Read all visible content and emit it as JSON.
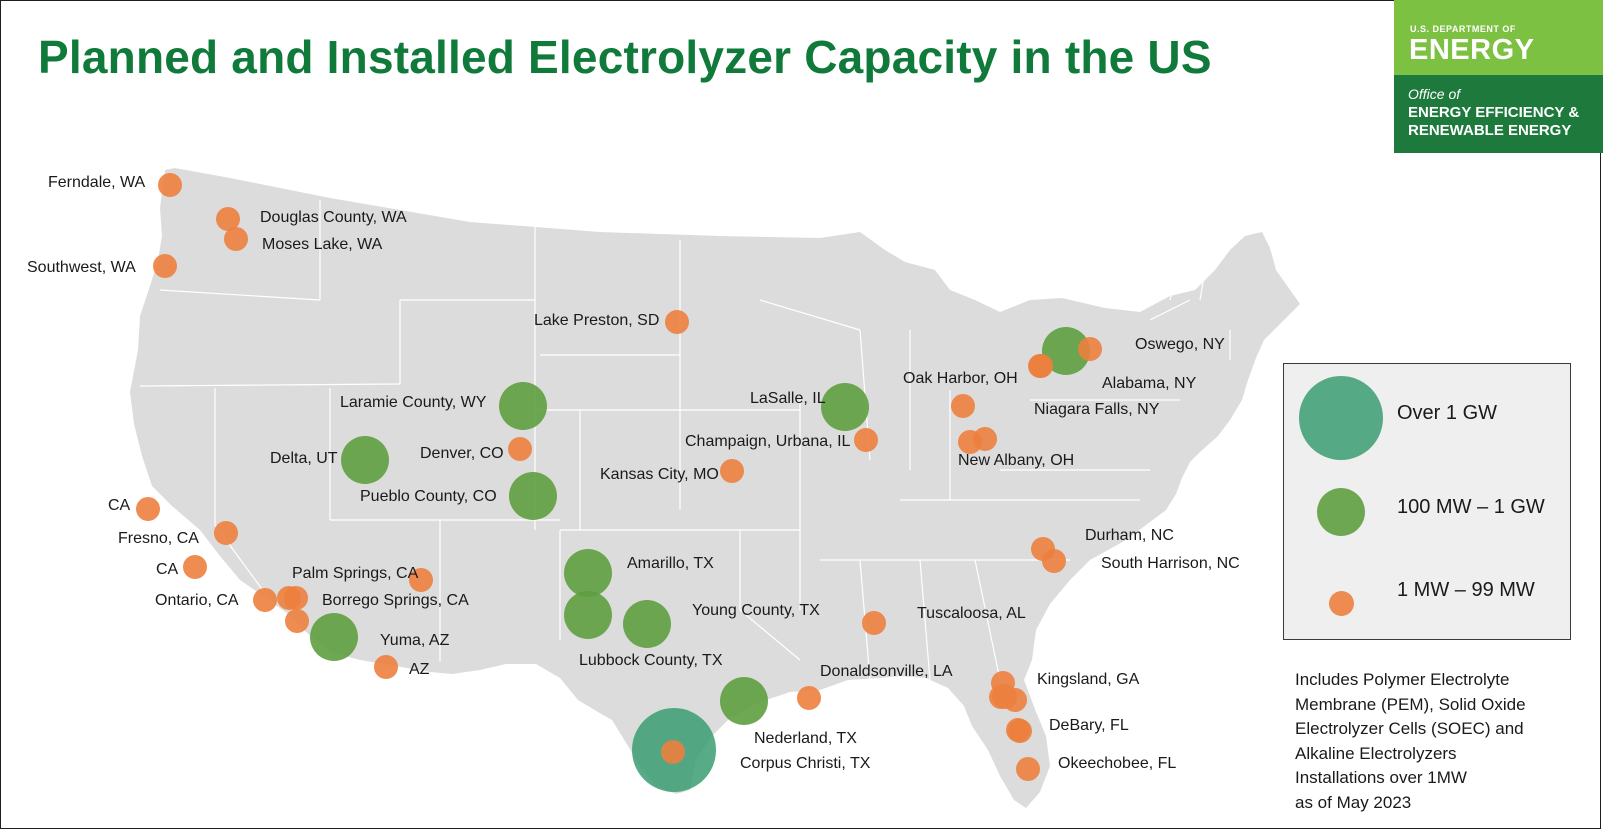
{
  "title": "Planned and Installed Electrolyzer Capacity in the US",
  "logo": {
    "dept": "U.S. DEPARTMENT OF",
    "energy": "ENERGY",
    "office": "Office of",
    "eere_line1": "ENERGY EFFICIENCY &",
    "eere_line2": "RENEWABLE ENERGY",
    "top_color": "#7dc142",
    "bottom_color": "#1e7a3c"
  },
  "colors": {
    "land": "#dcdcdc",
    "state_border": "#ffffff",
    "over_1gw": "#3a9e72",
    "mid": "#5e9e3f",
    "small": "#ec7f3e"
  },
  "legend": {
    "items": [
      {
        "label": "Over 1 GW",
        "category": "over_1gw"
      },
      {
        "label": "100 MW – 1 GW",
        "category": "mid"
      },
      {
        "label": "1 MW – 99 MW",
        "category": "small"
      }
    ]
  },
  "note_lines": [
    "Includes Polymer Electrolyte",
    "Membrane (PEM), Solid Oxide",
    "Electrolyzer Cells (SOEC) and",
    "Alkaline Electrolyzers",
    "Installations over 1MW",
    "as of May 2023"
  ],
  "sites": [
    {
      "label": "Ferndale, WA",
      "category": "small"
    },
    {
      "label": "Douglas County, WA",
      "category": "small"
    },
    {
      "label": "Moses Lake, WA",
      "category": "small"
    },
    {
      "label": "Southwest, WA",
      "category": "small"
    },
    {
      "label": "Lake Preston, SD",
      "category": "small"
    },
    {
      "label": "Laramie County, WY",
      "category": "mid"
    },
    {
      "label": "Delta, UT",
      "category": "mid"
    },
    {
      "label": "Denver, CO",
      "category": "small"
    },
    {
      "label": "Pueblo County, CO",
      "category": "mid"
    },
    {
      "label": "Kansas City, MO",
      "category": "small"
    },
    {
      "label": "LaSalle, IL",
      "category": "mid"
    },
    {
      "label": "Champaign, Urbana, IL",
      "category": "small"
    },
    {
      "label": "Oak Harbor, OH",
      "category": "small"
    },
    {
      "label": "New Albany, OH",
      "category": "small"
    },
    {
      "label": "Oswego, NY",
      "category": "small"
    },
    {
      "label": "Alabama, NY",
      "category": "mid"
    },
    {
      "label": "Niagara Falls, NY",
      "category": "small"
    },
    {
      "label": "CA",
      "category": "small"
    },
    {
      "label": "Fresno, CA",
      "category": "small"
    },
    {
      "label": "CA",
      "category": "small"
    },
    {
      "label": "Palm Springs, CA",
      "category": "small"
    },
    {
      "label": "Ontario, CA",
      "category": "small"
    },
    {
      "label": "Borrego Springs, CA",
      "category": "small"
    },
    {
      "label": "Yuma, AZ",
      "category": "mid"
    },
    {
      "label": "AZ",
      "category": "small"
    },
    {
      "label": "Amarillo, TX",
      "category": "mid"
    },
    {
      "label": "Young County, TX",
      "category": "mid"
    },
    {
      "label": "Lubbock County, TX",
      "category": "mid"
    },
    {
      "label": "Nederland, TX",
      "category": "mid"
    },
    {
      "label": "Corpus Christi, TX",
      "category": "over_1gw"
    },
    {
      "label": "Donaldsonville, LA",
      "category": "small"
    },
    {
      "label": "Tuscaloosa, AL",
      "category": "small"
    },
    {
      "label": "Durham, NC",
      "category": "small"
    },
    {
      "label": "South Harrison, NC",
      "category": "small"
    },
    {
      "label": "Kingsland, GA",
      "category": "small"
    },
    {
      "label": "DeBary, FL",
      "category": "small"
    },
    {
      "label": "Okeechobee, FL",
      "category": "small"
    }
  ]
}
